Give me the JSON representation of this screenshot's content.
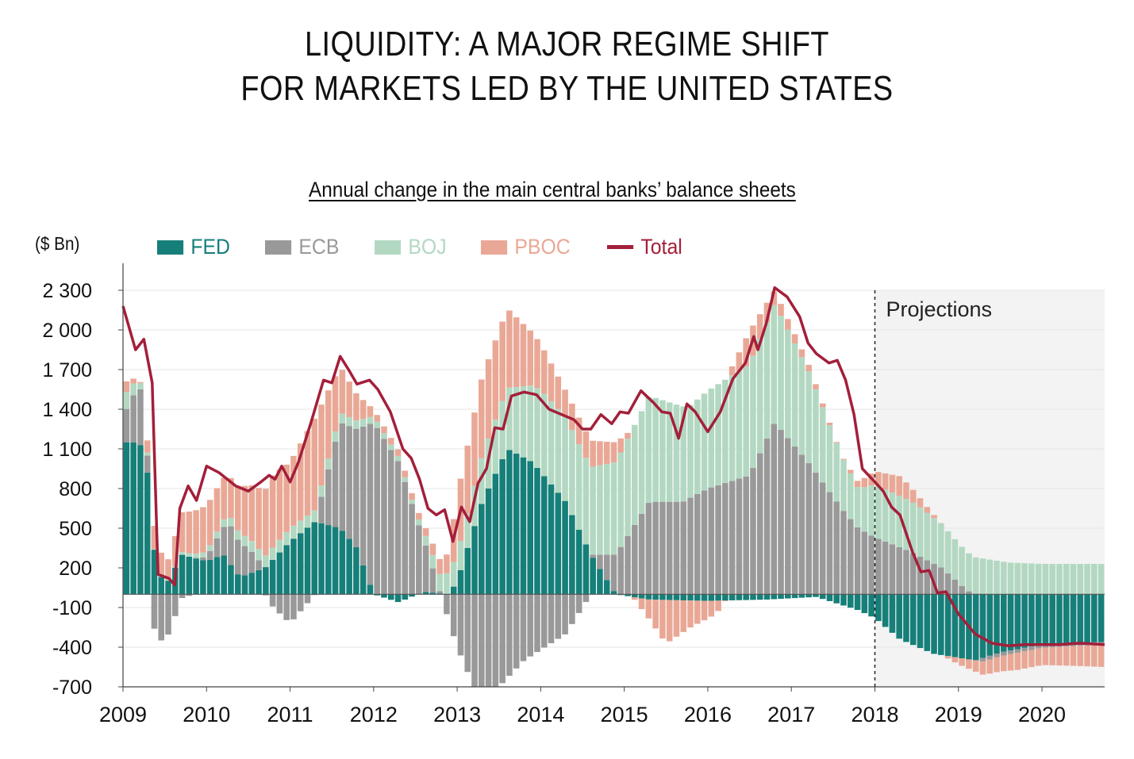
{
  "title_lines": [
    "LIQUIDITY: A MAJOR REGIME SHIFT",
    "FOR MARKETS LED BY THE UNITED STATES"
  ],
  "subtitle": "Annual change in the main central banks’ balance sheets",
  "unit_label": "($ Bn)",
  "projection_label": "Projections",
  "colors": {
    "FED": "#167f79",
    "ECB": "#999999",
    "BOJ": "#b3d8c2",
    "PBOC": "#e9a896",
    "Total": "#a31f3a"
  },
  "chart_data": {
    "type": "bar",
    "stacked": true,
    "title": "Annual change in the main central banks’ balance sheets",
    "ylabel": "($ Bn)",
    "ylim": [
      -700,
      2300
    ],
    "yticks": [
      2300,
      2000,
      1700,
      1400,
      1100,
      800,
      500,
      200,
      -100,
      -400,
      -700
    ],
    "ytick_labels": [
      "2 300",
      "2 000",
      "1 700",
      "1 400",
      "1 100",
      "800",
      "500",
      "200",
      "-100",
      "-400",
      "-700"
    ],
    "xlim": [
      2009.0,
      2020.75
    ],
    "xticks": [
      "2009",
      "2010",
      "2011",
      "2012",
      "2013",
      "2014",
      "2015",
      "2016",
      "2017",
      "2018",
      "2019",
      "2020"
    ],
    "projection_start": 2018.0,
    "legend": [
      "FED",
      "ECB",
      "BOJ",
      "PBOC",
      "Total"
    ],
    "legend_position": "top-left",
    "bar_keypoints": {
      "FED": [
        [
          2009.0,
          1150
        ],
        [
          2009.2,
          1150
        ],
        [
          2009.3,
          900
        ],
        [
          2009.4,
          150
        ],
        [
          2009.55,
          100
        ],
        [
          2009.7,
          300
        ],
        [
          2010.0,
          250
        ],
        [
          2010.2,
          300
        ],
        [
          2010.4,
          130
        ],
        [
          2010.7,
          200
        ],
        [
          2011.0,
          400
        ],
        [
          2011.3,
          550
        ],
        [
          2011.6,
          500
        ],
        [
          2011.8,
          350
        ],
        [
          2012.0,
          0
        ],
        [
          2012.3,
          -60
        ],
        [
          2012.6,
          20
        ],
        [
          2012.9,
          0
        ],
        [
          2013.0,
          100
        ],
        [
          2013.3,
          700
        ],
        [
          2013.6,
          1100
        ],
        [
          2013.9,
          1000
        ],
        [
          2014.3,
          700
        ],
        [
          2014.6,
          300
        ],
        [
          2014.9,
          0
        ],
        [
          2015.3,
          -40
        ],
        [
          2016.0,
          -50
        ],
        [
          2016.7,
          -40
        ],
        [
          2017.3,
          -20
        ],
        [
          2017.8,
          -120
        ],
        [
          2018.0,
          -180
        ],
        [
          2018.3,
          -340
        ],
        [
          2018.7,
          -450
        ],
        [
          2019.2,
          -500
        ],
        [
          2019.5,
          -440
        ],
        [
          2020.0,
          -380
        ],
        [
          2020.75,
          -360
        ]
      ],
      "ECB": [
        [
          2009.0,
          200
        ],
        [
          2009.2,
          450
        ],
        [
          2009.3,
          100
        ],
        [
          2009.4,
          -380
        ],
        [
          2009.55,
          -300
        ],
        [
          2009.7,
          -30
        ],
        [
          2010.0,
          30
        ],
        [
          2010.3,
          300
        ],
        [
          2010.5,
          200
        ],
        [
          2010.8,
          -100
        ],
        [
          2011.0,
          -220
        ],
        [
          2011.3,
          0
        ],
        [
          2011.6,
          800
        ],
        [
          2011.8,
          900
        ],
        [
          2012.0,
          1300
        ],
        [
          2012.3,
          1000
        ],
        [
          2012.6,
          400
        ],
        [
          2012.8,
          0
        ],
        [
          2013.0,
          -400
        ],
        [
          2013.2,
          -700
        ],
        [
          2013.5,
          -700
        ],
        [
          2013.8,
          -500
        ],
        [
          2014.3,
          -300
        ],
        [
          2014.6,
          0
        ],
        [
          2014.9,
          300
        ],
        [
          2015.3,
          700
        ],
        [
          2015.7,
          700
        ],
        [
          2016.0,
          800
        ],
        [
          2016.5,
          900
        ],
        [
          2016.8,
          1300
        ],
        [
          2017.2,
          1000
        ],
        [
          2017.6,
          650
        ],
        [
          2017.8,
          500
        ],
        [
          2018.0,
          430
        ],
        [
          2018.4,
          330
        ],
        [
          2018.8,
          200
        ],
        [
          2019.1,
          30
        ],
        [
          2019.3,
          -30
        ],
        [
          2020.75,
          -20
        ]
      ],
      "BOJ": [
        [
          2009.0,
          150
        ],
        [
          2009.2,
          50
        ],
        [
          2009.3,
          20
        ],
        [
          2009.4,
          0
        ],
        [
          2010.0,
          40
        ],
        [
          2010.5,
          80
        ],
        [
          2011.0,
          100
        ],
        [
          2011.5,
          80
        ],
        [
          2012.0,
          50
        ],
        [
          2012.5,
          30
        ],
        [
          2013.0,
          200
        ],
        [
          2013.3,
          350
        ],
        [
          2013.7,
          500
        ],
        [
          2014.0,
          620
        ],
        [
          2014.5,
          650
        ],
        [
          2014.9,
          700
        ],
        [
          2015.3,
          800
        ],
        [
          2015.8,
          700
        ],
        [
          2016.3,
          800
        ],
        [
          2016.8,
          900
        ],
        [
          2017.2,
          700
        ],
        [
          2017.6,
          400
        ],
        [
          2017.8,
          300
        ],
        [
          2018.0,
          400
        ],
        [
          2018.5,
          380
        ],
        [
          2019.0,
          300
        ],
        [
          2019.3,
          270
        ],
        [
          2019.6,
          240
        ],
        [
          2020.0,
          230
        ],
        [
          2020.75,
          230
        ]
      ],
      "PBOC": [
        [
          2009.0,
          100
        ],
        [
          2009.2,
          0
        ],
        [
          2009.4,
          200
        ],
        [
          2009.55,
          150
        ],
        [
          2009.7,
          300
        ],
        [
          2010.0,
          350
        ],
        [
          2010.3,
          300
        ],
        [
          2010.5,
          400
        ],
        [
          2010.8,
          550
        ],
        [
          2011.0,
          500
        ],
        [
          2011.3,
          700
        ],
        [
          2011.6,
          350
        ],
        [
          2011.8,
          200
        ],
        [
          2012.0,
          50
        ],
        [
          2012.3,
          50
        ],
        [
          2012.6,
          50
        ],
        [
          2012.9,
          150
        ],
        [
          2013.0,
          450
        ],
        [
          2013.3,
          600
        ],
        [
          2013.6,
          600
        ],
        [
          2013.9,
          400
        ],
        [
          2014.3,
          200
        ],
        [
          2014.6,
          200
        ],
        [
          2014.9,
          150
        ],
        [
          2015.3,
          -150
        ],
        [
          2015.5,
          -330
        ],
        [
          2015.8,
          -200
        ],
        [
          2016.1,
          -100
        ],
        [
          2016.5,
          250
        ],
        [
          2016.8,
          100
        ],
        [
          2017.2,
          50
        ],
        [
          2017.6,
          0
        ],
        [
          2018.0,
          100
        ],
        [
          2018.3,
          150
        ],
        [
          2018.6,
          50
        ],
        [
          2019.0,
          -50
        ],
        [
          2019.3,
          -100
        ],
        [
          2019.7,
          -130
        ],
        [
          2020.0,
          -130
        ],
        [
          2020.4,
          -150
        ],
        [
          2020.75,
          -170
        ]
      ]
    },
    "series": [
      {
        "name": "Total",
        "type": "line",
        "x": [
          2009.0,
          2009.15,
          2009.25,
          2009.35,
          2009.42,
          2009.55,
          2009.62,
          2009.68,
          2009.78,
          2009.88,
          2010.0,
          2010.15,
          2010.35,
          2010.5,
          2010.65,
          2010.75,
          2010.82,
          2010.9,
          2011.0,
          2011.1,
          2011.25,
          2011.4,
          2011.5,
          2011.6,
          2011.7,
          2011.8,
          2011.95,
          2012.05,
          2012.2,
          2012.35,
          2012.45,
          2012.55,
          2012.65,
          2012.75,
          2012.85,
          2012.95,
          2013.05,
          2013.15,
          2013.25,
          2013.35,
          2013.45,
          2013.55,
          2013.65,
          2013.8,
          2013.95,
          2014.1,
          2014.25,
          2014.4,
          2014.5,
          2014.6,
          2014.72,
          2014.85,
          2014.95,
          2015.05,
          2015.2,
          2015.35,
          2015.45,
          2015.55,
          2015.65,
          2015.75,
          2015.85,
          2016.0,
          2016.15,
          2016.3,
          2016.45,
          2016.55,
          2016.6,
          2016.7,
          2016.8,
          2016.95,
          2017.1,
          2017.2,
          2017.3,
          2017.45,
          2017.55,
          2017.65,
          2017.75,
          2017.85,
          2018.0,
          2018.1,
          2018.2,
          2018.3,
          2018.45,
          2018.55,
          2018.65,
          2018.75,
          2018.85,
          2019.0,
          2019.2,
          2019.4,
          2019.6,
          2019.8,
          2020.0,
          2020.2,
          2020.45,
          2020.75
        ],
        "values": [
          2180,
          1850,
          1930,
          1600,
          150,
          120,
          70,
          650,
          820,
          710,
          970,
          920,
          820,
          780,
          850,
          900,
          870,
          970,
          850,
          1000,
          1300,
          1620,
          1600,
          1800,
          1700,
          1590,
          1620,
          1550,
          1380,
          1100,
          1030,
          870,
          650,
          600,
          640,
          400,
          660,
          550,
          840,
          950,
          1260,
          1250,
          1500,
          1530,
          1510,
          1400,
          1360,
          1320,
          1250,
          1250,
          1360,
          1290,
          1380,
          1370,
          1540,
          1450,
          1380,
          1370,
          1180,
          1440,
          1380,
          1230,
          1380,
          1630,
          1750,
          1950,
          1850,
          2050,
          2320,
          2250,
          2100,
          1900,
          1820,
          1750,
          1770,
          1620,
          1360,
          950,
          850,
          780,
          660,
          600,
          320,
          170,
          180,
          10,
          20,
          -150,
          -300,
          -370,
          -390,
          -380,
          -380,
          -380,
          -370,
          -380
        ]
      }
    ]
  }
}
